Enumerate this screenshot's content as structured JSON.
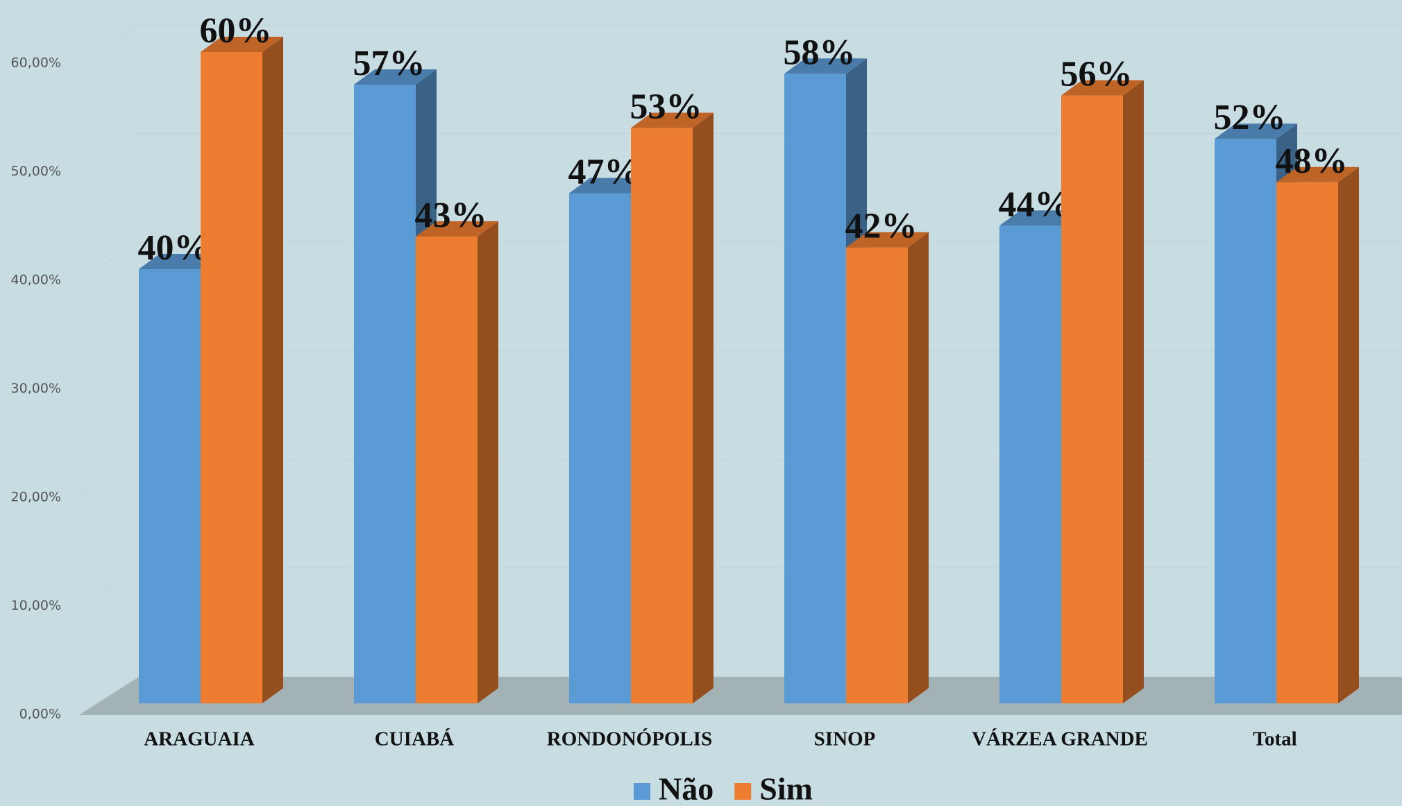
{
  "chart_data": {
    "type": "bar3d",
    "categories": [
      "ARAGUAIA",
      "CUIABÁ",
      "RONDONÓPOLIS",
      "SINOP",
      "VÁRZEA GRANDE",
      "Total"
    ],
    "series": [
      {
        "name": "Não",
        "color": "#5b9bd5",
        "values": [
          40,
          57,
          47,
          58,
          44,
          52
        ],
        "value_labels": [
          "40%",
          "57%",
          "47%",
          "58%",
          "44%",
          "52%"
        ]
      },
      {
        "name": "Sim",
        "color": "#ed7d31",
        "values": [
          60,
          43,
          53,
          42,
          56,
          48
        ],
        "value_labels": [
          "60%",
          "43%",
          "53%",
          "42%",
          "56%",
          "48%"
        ]
      }
    ],
    "ylim": [
      0,
      60
    ],
    "yticks": [
      {
        "value": 0,
        "label": "0,00%"
      },
      {
        "value": 10,
        "label": "10,00%"
      },
      {
        "value": 20,
        "label": "20,00%"
      },
      {
        "value": 30,
        "label": "30,00%"
      },
      {
        "value": 40,
        "label": "40,00%"
      },
      {
        "value": 50,
        "label": "50,00%"
      },
      {
        "value": 60,
        "label": "60,00%"
      }
    ],
    "grid": true,
    "legend": "bottom"
  }
}
